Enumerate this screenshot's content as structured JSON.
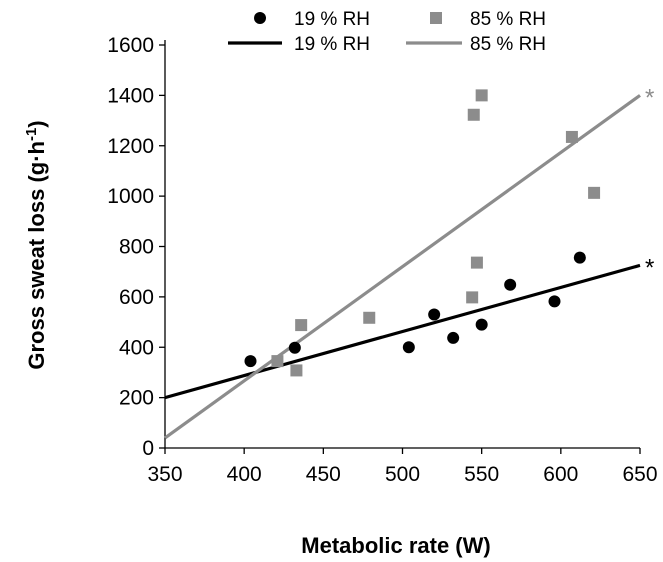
{
  "chart_data": {
    "type": "scatter",
    "xlabel": "Metabolic rate (W)",
    "ylabel": "Gross sweat loss (g·h",
    "ylabel_sup": "-1",
    "ylabel_close": ")",
    "xlim": [
      350,
      650
    ],
    "ylim": [
      0,
      1600
    ],
    "x_ticks": [
      350,
      400,
      450,
      500,
      550,
      600,
      650
    ],
    "y_ticks": [
      0,
      200,
      400,
      600,
      800,
      1000,
      1200,
      1400,
      1600
    ],
    "grid": false,
    "legend_position": "top",
    "series": [
      {
        "name": "19 % RH",
        "kind": "points",
        "marker": "circle",
        "color": "#000000",
        "points": [
          [
            404,
            345
          ],
          [
            432,
            398
          ],
          [
            504,
            400
          ],
          [
            520,
            530
          ],
          [
            532,
            437
          ],
          [
            550,
            490
          ],
          [
            568,
            648
          ],
          [
            596,
            582
          ],
          [
            612,
            756
          ]
        ]
      },
      {
        "name": "85 % RH",
        "kind": "points",
        "marker": "square",
        "color": "#8c8c8c",
        "points": [
          [
            421,
            345
          ],
          [
            433,
            308
          ],
          [
            436,
            488
          ],
          [
            479,
            517
          ],
          [
            544,
            598
          ],
          [
            545,
            1323
          ],
          [
            547,
            736
          ],
          [
            550,
            1400
          ],
          [
            607,
            1235
          ],
          [
            621,
            1013
          ]
        ]
      },
      {
        "name": "19 % RH",
        "kind": "line",
        "color": "#000000",
        "points": [
          [
            350,
            200
          ],
          [
            650,
            725
          ]
        ],
        "annotation": "*"
      },
      {
        "name": "85 % RH",
        "kind": "line",
        "color": "#8c8c8c",
        "points": [
          [
            350,
            40
          ],
          [
            650,
            1400
          ]
        ],
        "annotation": "*"
      }
    ]
  }
}
